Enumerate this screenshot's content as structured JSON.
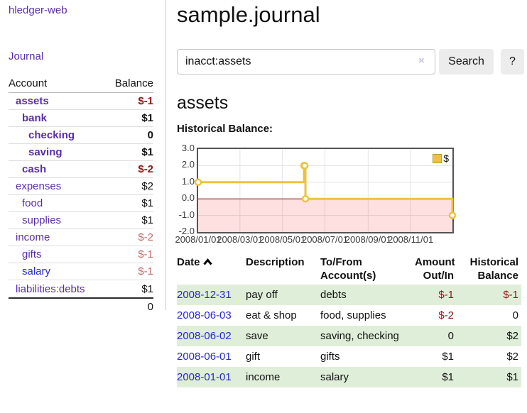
{
  "app": {
    "brand": "hledger-web"
  },
  "sidebar": {
    "journal_link": "Journal",
    "table": {
      "account_header": "Account",
      "balance_header": "Balance",
      "rows": [
        {
          "account": "assets",
          "balance": "$-1",
          "depth": 1,
          "bold": true,
          "link_color": "purple",
          "balance_class": "neg-dark"
        },
        {
          "account": "bank",
          "balance": "$1",
          "depth": 2,
          "bold": true,
          "link_color": "purple",
          "balance_class": ""
        },
        {
          "account": "checking",
          "balance": "0",
          "depth": 3,
          "bold": true,
          "link_color": "purple",
          "balance_class": ""
        },
        {
          "account": "saving",
          "balance": "$1",
          "depth": 3,
          "bold": true,
          "link_color": "purple",
          "balance_class": ""
        },
        {
          "account": "cash",
          "balance": "$-2",
          "depth": 2,
          "bold": true,
          "link_color": "purple",
          "balance_class": "neg-dark"
        },
        {
          "account": "expenses",
          "balance": "$2",
          "depth": 1,
          "bold": false,
          "link_color": "purple",
          "balance_class": ""
        },
        {
          "account": "food",
          "balance": "$1",
          "depth": 2,
          "bold": false,
          "link_color": "purple",
          "balance_class": ""
        },
        {
          "account": "supplies",
          "balance": "$1",
          "depth": 2,
          "bold": false,
          "link_color": "purple",
          "balance_class": ""
        },
        {
          "account": "income",
          "balance": "$-2",
          "depth": 1,
          "bold": false,
          "link_color": "purple",
          "balance_class": "neg-light"
        },
        {
          "account": "gifts",
          "balance": "$-1",
          "depth": 2,
          "bold": false,
          "link_color": "purple",
          "balance_class": "neg-light"
        },
        {
          "account": "salary",
          "balance": "$-1",
          "depth": 2,
          "bold": false,
          "link_color": "blue",
          "balance_class": "neg-light"
        },
        {
          "account": "liabilities:debts",
          "balance": "$1",
          "depth": 1,
          "bold": false,
          "link_color": "purple",
          "balance_class": ""
        }
      ],
      "total": "0"
    }
  },
  "header": {
    "title": "sample.journal"
  },
  "search": {
    "value": "inacct:assets",
    "clear_icon": "×",
    "button_label": "Search",
    "help_label": "?"
  },
  "account_page": {
    "title": "assets",
    "chart_label": "Historical Balance:"
  },
  "chart_data": {
    "type": "line",
    "style": "step",
    "title": "Historical Balance:",
    "legend": {
      "label": "$",
      "position": "top-right"
    },
    "x_range": [
      "2008-01-01",
      "2008-12-31"
    ],
    "ylim": [
      -2.0,
      3.0
    ],
    "yticks": [
      "3.0",
      "2.0",
      "1.0",
      "0.0",
      "-1.0",
      "-2.0"
    ],
    "xticks": [
      "2008/01/01",
      "2008/03/01",
      "2008/05/01",
      "2008/07/01",
      "2008/09/01",
      "2008/11/01"
    ],
    "series": [
      {
        "name": "$",
        "points": [
          {
            "date": "2008-01-01",
            "value": 1
          },
          {
            "date": "2008-06-01",
            "value": 2
          },
          {
            "date": "2008-06-02",
            "value": 2
          },
          {
            "date": "2008-06-03",
            "value": 0
          },
          {
            "date": "2008-12-31",
            "value": -1
          }
        ]
      }
    ],
    "grid": true,
    "negative_region_below": 0,
    "colors": {
      "line": "#edc240",
      "marker_fill": "#ffffff",
      "negative_region": "rgba(255,0,0,0.12)",
      "zero_line": "#8b1111",
      "gridline": "#e3e3e3",
      "plot_border": "#545454"
    }
  },
  "register": {
    "headers": [
      {
        "lines": [
          "Date"
        ],
        "sorted": "asc",
        "align": "left"
      },
      {
        "lines": [
          "Description"
        ],
        "align": "left"
      },
      {
        "lines": [
          "To/From",
          "Account(s)"
        ],
        "align": "left"
      },
      {
        "lines": [
          "Amount",
          "Out/In"
        ],
        "align": "right"
      },
      {
        "lines": [
          "Historical",
          "Balance"
        ],
        "align": "right"
      }
    ],
    "rows": [
      {
        "date": "2008-12-31",
        "description": "pay off",
        "accounts": "debts",
        "amount": "$-1",
        "amount_neg": true,
        "balance": "$-1",
        "balance_neg": true
      },
      {
        "date": "2008-06-03",
        "description": "eat & shop",
        "accounts": "food, supplies",
        "amount": "$-2",
        "amount_neg": true,
        "balance": "0",
        "balance_neg": false
      },
      {
        "date": "2008-06-02",
        "description": "save",
        "accounts": "saving, checking",
        "amount": "0",
        "amount_neg": false,
        "balance": "$2",
        "balance_neg": false
      },
      {
        "date": "2008-06-01",
        "description": "gift",
        "accounts": "gifts",
        "amount": "$1",
        "amount_neg": false,
        "balance": "$2",
        "balance_neg": false
      },
      {
        "date": "2008-01-01",
        "description": "income",
        "accounts": "salary",
        "amount": "$1",
        "amount_neg": false,
        "balance": "$1",
        "balance_neg": false
      }
    ]
  }
}
